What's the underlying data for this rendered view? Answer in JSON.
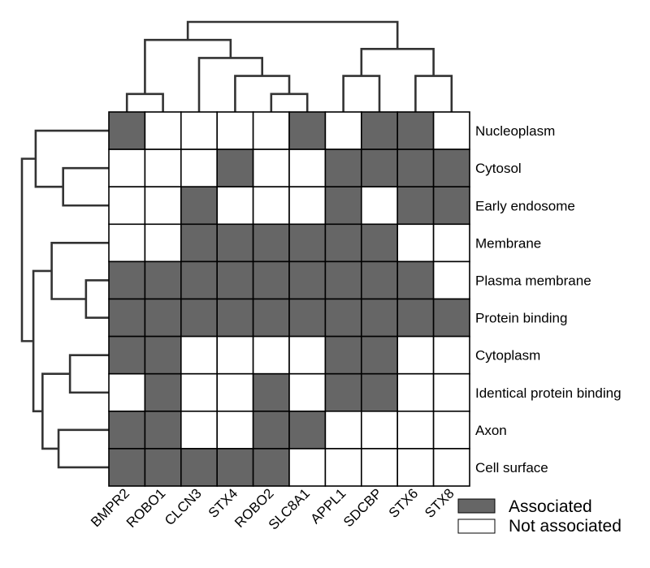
{
  "chart_data": {
    "type": "heatmap",
    "title": "",
    "xlabel": "",
    "ylabel": "",
    "columns": [
      "BMPR2",
      "ROBO1",
      "CLCN3",
      "STX4",
      "ROBO2",
      "SLC8A1",
      "APPL1",
      "SDCBP",
      "STX6",
      "STX8"
    ],
    "rows": [
      "Nucleoplasm",
      "Cytosol",
      "Early endosome",
      "Membrane",
      "Plasma membrane",
      "Protein binding",
      "Cytoplasm",
      "Identical protein binding",
      "Axon",
      "Cell surface"
    ],
    "matrix": [
      [
        1,
        0,
        0,
        0,
        0,
        1,
        0,
        1,
        1,
        0
      ],
      [
        0,
        0,
        0,
        1,
        0,
        0,
        1,
        1,
        1,
        1
      ],
      [
        0,
        0,
        1,
        0,
        0,
        0,
        1,
        0,
        1,
        1
      ],
      [
        0,
        0,
        1,
        1,
        1,
        1,
        1,
        1,
        0,
        0
      ],
      [
        1,
        1,
        1,
        1,
        1,
        1,
        1,
        1,
        1,
        0
      ],
      [
        1,
        1,
        1,
        1,
        1,
        1,
        1,
        1,
        1,
        1
      ],
      [
        1,
        1,
        0,
        0,
        0,
        0,
        1,
        1,
        0,
        0
      ],
      [
        0,
        1,
        0,
        0,
        1,
        0,
        1,
        1,
        0,
        0
      ],
      [
        1,
        1,
        0,
        0,
        1,
        1,
        0,
        0,
        0,
        0
      ],
      [
        1,
        1,
        1,
        1,
        1,
        0,
        0,
        0,
        0,
        0
      ]
    ],
    "legend": [
      {
        "label": "Associated",
        "value": 1
      },
      {
        "label": "Not associated",
        "value": 0
      }
    ],
    "legend_position": "bottom-right",
    "colors": {
      "associated": "#666666",
      "not_associated": "#ffffff",
      "grid": "#000000",
      "dendrogram": "#333333"
    },
    "column_dendrogram": {
      "merges": [
        {
          "a": 0,
          "b": 1,
          "height": 1
        },
        {
          "a": 4,
          "b": 5,
          "height": 1
        },
        {
          "a": 3,
          "b": "m1",
          "height": 2
        },
        {
          "a": 2,
          "b": "m2",
          "height": 3
        },
        {
          "a": "m0",
          "b": "m3",
          "height": 4
        },
        {
          "a": 8,
          "b": 9,
          "height": 2
        },
        {
          "a": 6,
          "b": 7,
          "height": 2
        },
        {
          "a": "m6",
          "b": "m5",
          "height": 3.5
        },
        {
          "a": "m4",
          "b": "m7",
          "height": 5
        }
      ]
    },
    "row_dendrogram": {
      "merges": [
        {
          "a": 4,
          "b": 5,
          "height": 1
        },
        {
          "a": 3,
          "b": "m0",
          "height": 2.5
        },
        {
          "a": 1,
          "b": 2,
          "height": 2
        },
        {
          "a": 0,
          "b": "m2",
          "height": 3.2
        },
        {
          "a": 6,
          "b": 7,
          "height": 1.7
        },
        {
          "a": 8,
          "b": 9,
          "height": 2.2
        },
        {
          "a": "m4",
          "b": "m5",
          "height": 2.9
        },
        {
          "a": "m1",
          "b": "m6",
          "height": 3.3
        },
        {
          "a": "m3",
          "b": "m7",
          "height": 3.8
        }
      ]
    }
  }
}
